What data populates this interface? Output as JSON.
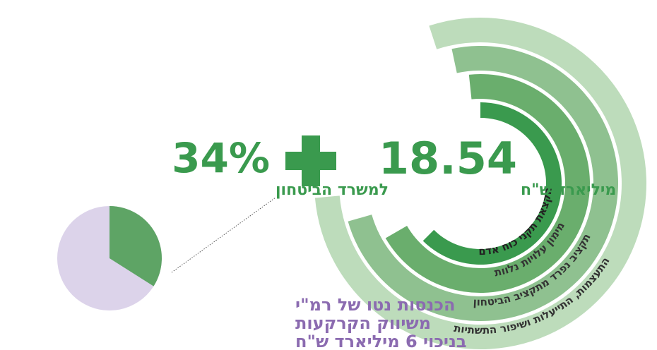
{
  "chart_data": {
    "type": "pie",
    "values": [
      34
    ],
    "value_labels": [
      "34%"
    ],
    "color": "#5ea465",
    "background_color": "#dcd3ea"
  },
  "texts": {
    "pie_caption": "למשרד הביטחון",
    "total_value": "18.54",
    "total_unit": "מיליארד ש\"ח",
    "rings": [
      "הקצאת תקני כוח אדם",
      "מימון עלויות נלוות",
      "תקציב נפרד מתקציב הביטחון",
      "התעצמות, התייעלות ושיפור התשתיות"
    ],
    "caption": [
      "הכנסות נטו של רמ\"י",
      "משיווק הקרקעות",
      "בניכוי 6 מיליארד ש\"ח"
    ]
  }
}
